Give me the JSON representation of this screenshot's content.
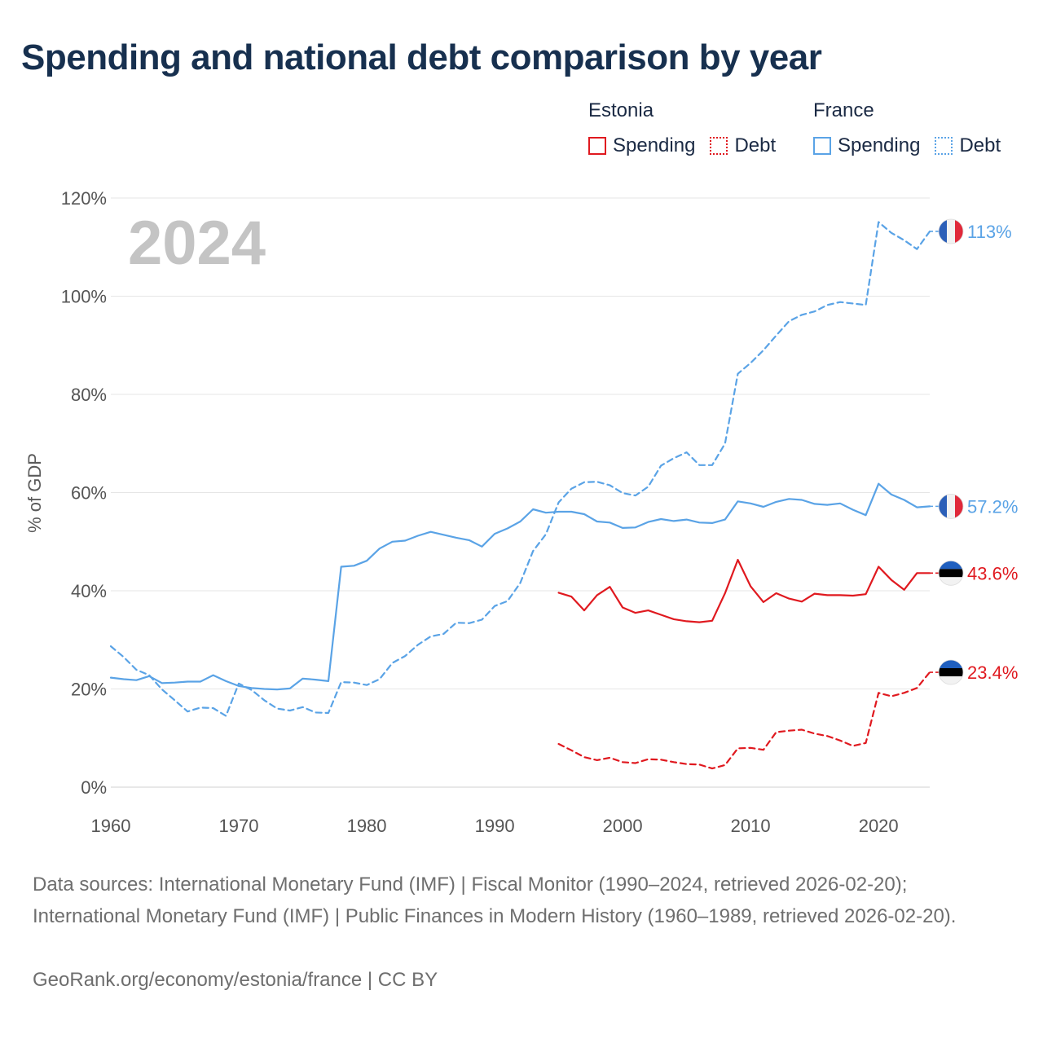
{
  "title": "Spending and national debt comparison by year",
  "legend": {
    "groups": [
      {
        "name": "Estonia",
        "color": "#e0191f",
        "items": [
          {
            "label": "Spending",
            "style": "solid"
          },
          {
            "label": "Debt",
            "style": "dotted"
          }
        ]
      },
      {
        "name": "France",
        "color": "#5aa3e6",
        "items": [
          {
            "label": "Spending",
            "style": "solid"
          },
          {
            "label": "Debt",
            "style": "dotted"
          }
        ]
      }
    ]
  },
  "footer": {
    "sources": "Data sources: International Monetary Fund (IMF) | Fiscal Monitor (1990–2024, retrieved 2026-02-20); International Monetary Fund (IMF) | Public Finances in Modern History (1960–1989, retrieved 2026-02-20).",
    "credit": "GeoRank.org/economy/estonia/france | CC BY"
  },
  "chart_data": {
    "type": "line",
    "title": "Spending and national debt comparison by year",
    "year_watermark": "2024",
    "ylabel": "% of GDP",
    "xlabel": "",
    "xlim": [
      1960,
      2024
    ],
    "ylim": [
      0,
      120
    ],
    "x_ticks": [
      1960,
      1970,
      1980,
      1990,
      2000,
      2010,
      2020
    ],
    "y_ticks": [
      0,
      20,
      40,
      60,
      80,
      100,
      120
    ],
    "y_tick_labels": [
      "0%",
      "20%",
      "40%",
      "60%",
      "80%",
      "100%",
      "120%"
    ],
    "grid": true,
    "series": [
      {
        "name": "France Spending",
        "country": "France",
        "color": "#5aa3e6",
        "dash": false,
        "end_label": "57.2%",
        "x": [
          1960,
          1961,
          1962,
          1963,
          1964,
          1965,
          1966,
          1967,
          1968,
          1969,
          1970,
          1971,
          1972,
          1973,
          1974,
          1975,
          1976,
          1977,
          1978,
          1979,
          1980,
          1981,
          1982,
          1983,
          1984,
          1985,
          1986,
          1987,
          1988,
          1989,
          1990,
          1991,
          1992,
          1993,
          1994,
          1995,
          1996,
          1997,
          1998,
          1999,
          2000,
          2001,
          2002,
          2003,
          2004,
          2005,
          2006,
          2007,
          2008,
          2009,
          2010,
          2011,
          2012,
          2013,
          2014,
          2015,
          2016,
          2017,
          2018,
          2019,
          2020,
          2021,
          2022,
          2023,
          2024
        ],
        "values": [
          22.3,
          22.0,
          21.8,
          22.6,
          21.2,
          21.3,
          21.5,
          21.5,
          22.8,
          21.6,
          20.6,
          20.2,
          20.0,
          19.9,
          20.1,
          22.1,
          21.9,
          21.6,
          44.9,
          45.1,
          46.1,
          48.6,
          50.0,
          50.2,
          51.2,
          52.0,
          51.4,
          50.8,
          50.3,
          49.0,
          51.6,
          52.7,
          54.1,
          56.6,
          55.9,
          56.1,
          56.1,
          55.6,
          54.1,
          53.9,
          52.8,
          52.9,
          54.0,
          54.6,
          54.2,
          54.5,
          53.9,
          53.8,
          54.5,
          58.2,
          57.8,
          57.1,
          58.1,
          58.7,
          58.5,
          57.7,
          57.5,
          57.8,
          56.5,
          55.4,
          61.8,
          59.6,
          58.5,
          57.0,
          57.2
        ]
      },
      {
        "name": "France Debt",
        "country": "France",
        "color": "#5aa3e6",
        "dash": true,
        "end_label": "113%",
        "x": [
          1960,
          1961,
          1962,
          1963,
          1964,
          1965,
          1966,
          1967,
          1968,
          1969,
          1970,
          1971,
          1972,
          1973,
          1974,
          1975,
          1976,
          1977,
          1978,
          1979,
          1980,
          1981,
          1982,
          1983,
          1984,
          1985,
          1986,
          1987,
          1988,
          1989,
          1990,
          1991,
          1992,
          1993,
          1994,
          1995,
          1996,
          1997,
          1998,
          1999,
          2000,
          2001,
          2002,
          2003,
          2004,
          2005,
          2006,
          2007,
          2008,
          2009,
          2010,
          2011,
          2012,
          2013,
          2014,
          2015,
          2016,
          2017,
          2018,
          2019,
          2020,
          2021,
          2022,
          2023,
          2024
        ],
        "values": [
          28.7,
          26.5,
          23.9,
          22.8,
          19.9,
          17.7,
          15.4,
          16.2,
          16.1,
          14.5,
          21.1,
          19.8,
          17.7,
          16.0,
          15.6,
          16.3,
          15.2,
          15.1,
          21.4,
          21.3,
          20.8,
          22.0,
          25.3,
          26.7,
          29.0,
          30.7,
          31.2,
          33.5,
          33.4,
          34.1,
          36.9,
          37.9,
          41.6,
          48.1,
          51.5,
          58.0,
          60.8,
          62.1,
          62.2,
          61.5,
          59.9,
          59.4,
          61.2,
          65.5,
          67.0,
          68.2,
          65.6,
          65.6,
          70.0,
          84.2,
          86.4,
          89.0,
          92.0,
          94.9,
          96.2,
          96.9,
          98.2,
          98.8,
          98.5,
          98.2,
          115.1,
          112.9,
          111.4,
          109.6,
          113.2
        ]
      },
      {
        "name": "Estonia Spending",
        "country": "Estonia",
        "color": "#e0191f",
        "dash": false,
        "end_label": "43.6%",
        "x": [
          1995,
          1996,
          1997,
          1998,
          1999,
          2000,
          2001,
          2002,
          2003,
          2004,
          2005,
          2006,
          2007,
          2008,
          2009,
          2010,
          2011,
          2012,
          2013,
          2014,
          2015,
          2016,
          2017,
          2018,
          2019,
          2020,
          2021,
          2022,
          2023,
          2024
        ],
        "values": [
          39.6,
          38.8,
          36.0,
          39.1,
          40.8,
          36.6,
          35.5,
          36.0,
          35.1,
          34.2,
          33.8,
          33.6,
          33.9,
          39.5,
          46.3,
          40.9,
          37.7,
          39.5,
          38.4,
          37.8,
          39.4,
          39.1,
          39.1,
          39.0,
          39.3,
          44.9,
          42.2,
          40.2,
          43.6,
          43.6
        ]
      },
      {
        "name": "Estonia Debt",
        "country": "Estonia",
        "color": "#e0191f",
        "dash": true,
        "end_label": "23.4%",
        "x": [
          1995,
          1996,
          1997,
          1998,
          1999,
          2000,
          2001,
          2002,
          2003,
          2004,
          2005,
          2006,
          2007,
          2008,
          2009,
          2010,
          2011,
          2012,
          2013,
          2014,
          2015,
          2016,
          2017,
          2018,
          2019,
          2020,
          2021,
          2022,
          2023,
          2024
        ],
        "values": [
          8.8,
          7.5,
          6.1,
          5.5,
          6.0,
          5.1,
          4.9,
          5.7,
          5.6,
          5.1,
          4.7,
          4.6,
          3.8,
          4.5,
          7.9,
          8.0,
          7.6,
          11.2,
          11.5,
          11.7,
          10.9,
          10.4,
          9.5,
          8.4,
          9.0,
          19.2,
          18.5,
          19.2,
          20.2,
          23.4
        ]
      }
    ],
    "end_markers": [
      {
        "series": "France Debt",
        "flag": "france-flag",
        "colors": [
          "#2b5fb8",
          "#f2f2f2",
          "#e0293a"
        ]
      },
      {
        "series": "France Spending",
        "flag": "france-flag",
        "colors": [
          "#2b5fb8",
          "#f2f2f2",
          "#e0293a"
        ]
      },
      {
        "series": "Estonia Spending",
        "flag": "estonia-flag",
        "colors": [
          "#1f5fbf",
          "#000000",
          "#f2f2f2"
        ]
      },
      {
        "series": "Estonia Debt",
        "flag": "estonia-flag",
        "colors": [
          "#1f5fbf",
          "#000000",
          "#f2f2f2"
        ]
      }
    ]
  }
}
